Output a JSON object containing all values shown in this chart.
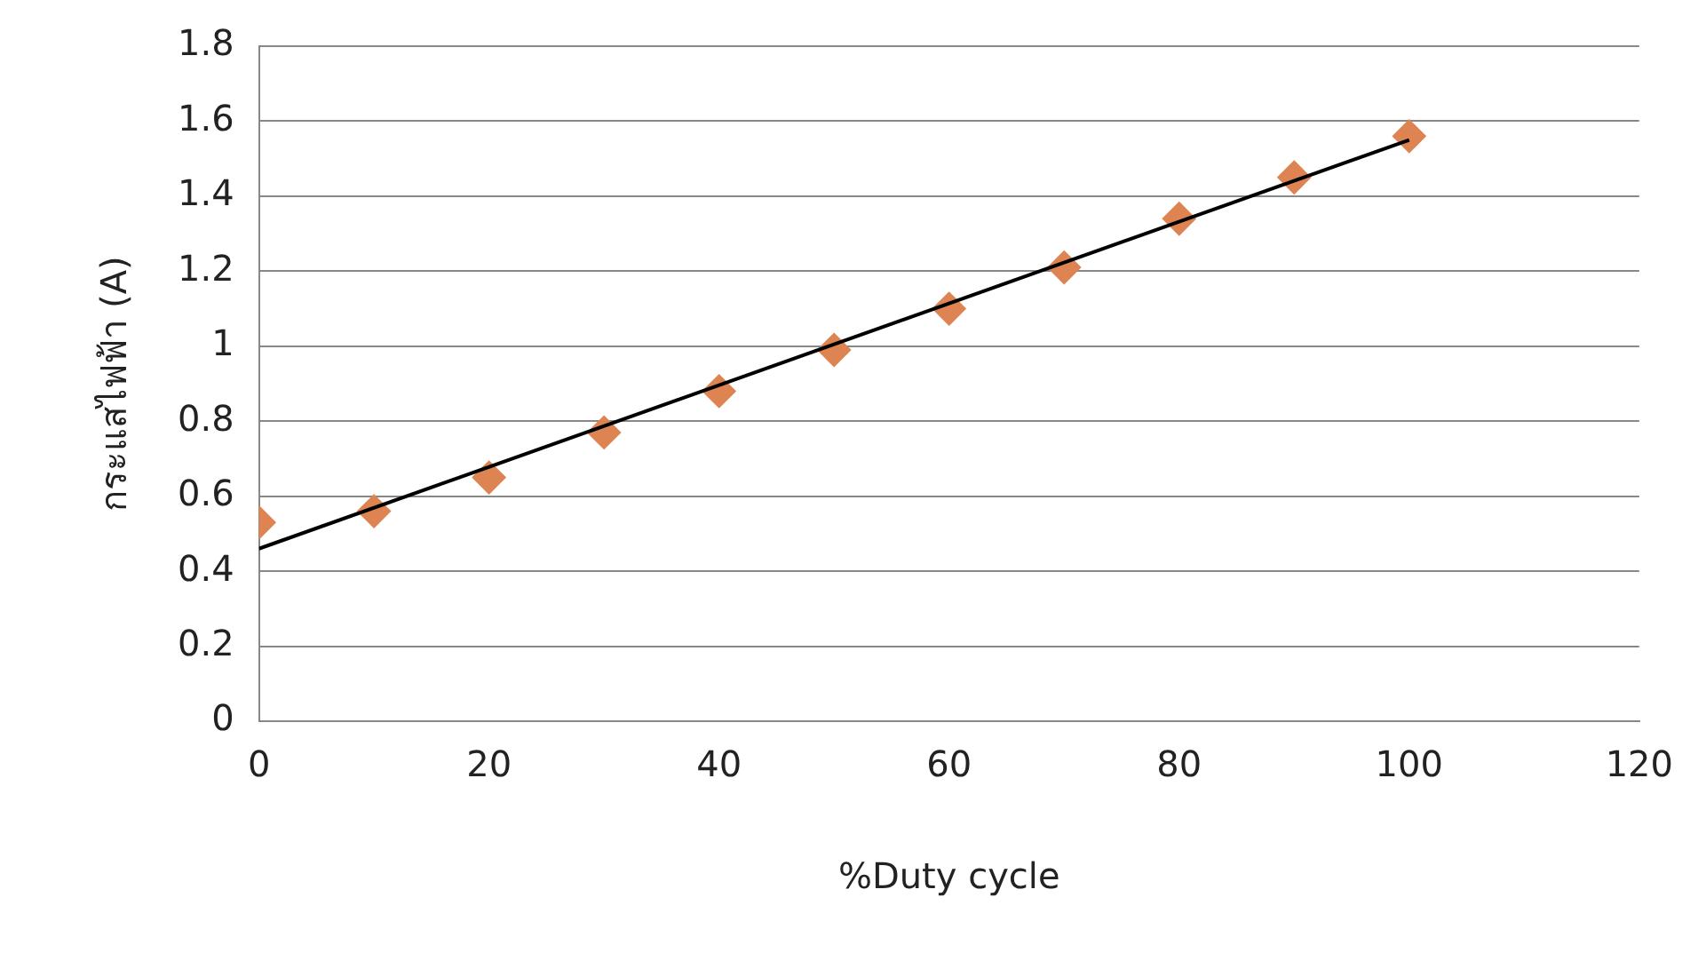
{
  "chart_data": {
    "type": "scatter",
    "xlabel": "%Duty cycle",
    "ylabel": "กระแสไฟฟ้า (A)",
    "xlim": [
      0,
      120
    ],
    "xticks": [
      0,
      20,
      40,
      60,
      80,
      100,
      120
    ],
    "ylim": [
      0,
      1.8
    ],
    "yticks": [
      0,
      0.2,
      0.4,
      0.6,
      0.8,
      1,
      1.2,
      1.4,
      1.6,
      1.8
    ],
    "grid": "y",
    "legend": false,
    "marker": "diamond",
    "series": [
      {
        "type": "scatter",
        "color": "#dd8452",
        "x": [
          0,
          10,
          20,
          30,
          40,
          50,
          60,
          70,
          80,
          90,
          100
        ],
        "values": [
          0.53,
          0.56,
          0.65,
          0.77,
          0.88,
          0.99,
          1.1,
          1.21,
          1.34,
          1.45,
          1.56
        ]
      },
      {
        "type": "line",
        "color": "#000000",
        "marker": "none",
        "x": [
          0,
          100
        ],
        "values": [
          0.46,
          1.55
        ]
      }
    ]
  }
}
